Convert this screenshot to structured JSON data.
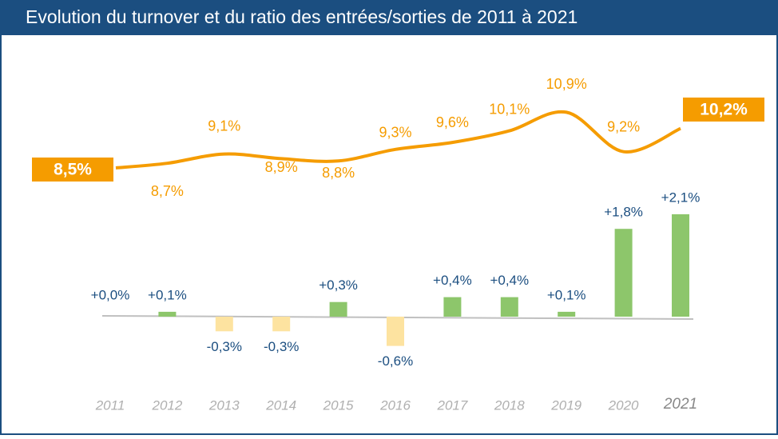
{
  "chart_data": [
    {
      "type": "line",
      "title": "Evolution du turnover et du ratio des entrées/sorties de 2011 à 2021",
      "categories": [
        "2011",
        "2012",
        "2013",
        "2014",
        "2015",
        "2016",
        "2017",
        "2018",
        "2019",
        "2020",
        "2021"
      ],
      "series": [
        {
          "color": "#f59c00",
          "values": [
            8.5,
            8.7,
            9.1,
            8.9,
            8.8,
            9.3,
            9.6,
            10.1,
            10.9,
            9.2,
            10.2
          ],
          "value_labels": [
            "8,5%",
            "8,7%",
            "9,1%",
            "8,9%",
            "8,8%",
            "9,3%",
            "9,6%",
            "10,1%",
            "10,9%",
            "9,2%",
            "10,2%"
          ]
        }
      ]
    },
    {
      "type": "bar",
      "categories": [
        "2011",
        "2012",
        "2013",
        "2014",
        "2015",
        "2016",
        "2017",
        "2018",
        "2019",
        "2020",
        "2021"
      ],
      "color": "#8dc66b",
      "negative_color": "#fde3a0",
      "values": [
        0.0,
        0.1,
        -0.3,
        -0.3,
        0.3,
        -0.6,
        0.4,
        0.4,
        0.1,
        1.8,
        2.1
      ],
      "value_labels": [
        "+0,0%",
        "+0,1%",
        "-0,3%",
        "-0,3%",
        "+0,3%",
        "-0,6%",
        "+0,4%",
        "+0,4%",
        "+0,1%",
        "+1,8%",
        "+2,1%"
      ]
    }
  ]
}
